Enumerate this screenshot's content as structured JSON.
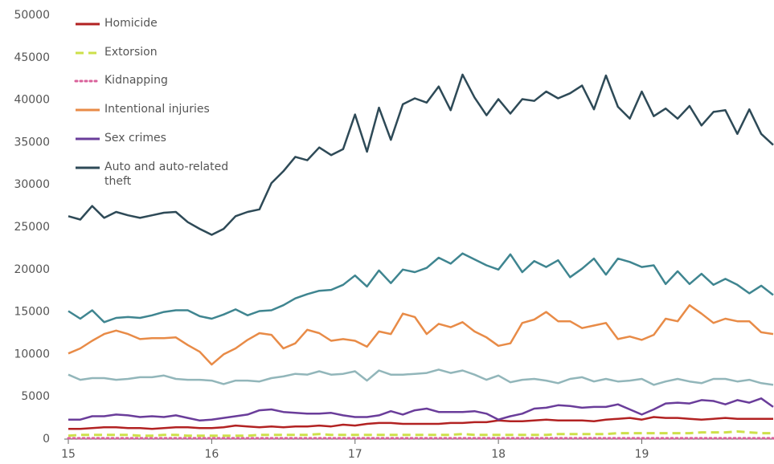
{
  "chart_data": {
    "type": "line",
    "categories": [
      "15",
      null,
      null,
      null,
      null,
      null,
      null,
      null,
      null,
      null,
      null,
      null,
      "16",
      null,
      null,
      null,
      null,
      null,
      null,
      null,
      null,
      null,
      null,
      null,
      "17",
      null,
      null,
      null,
      null,
      null,
      null,
      null,
      null,
      null,
      null,
      null,
      "18",
      null,
      null,
      null,
      null,
      null,
      null,
      null,
      null,
      null,
      null,
      null,
      "19",
      null,
      null,
      null,
      null,
      null,
      null,
      null,
      null,
      null,
      null,
      null
    ],
    "ylim": [
      0,
      50000
    ],
    "yticks": [
      0,
      5000,
      10000,
      15000,
      20000,
      25000,
      30000,
      35000,
      40000,
      45000,
      50000
    ],
    "series": [
      {
        "color": "#3f8590",
        "values": [
          15100,
          14200,
          15200,
          13800,
          14300,
          14400,
          14300,
          14600,
          15000,
          15200,
          15200,
          14500,
          14200,
          14700,
          15300,
          14600,
          15100,
          15200,
          15800,
          16600,
          17100,
          17500,
          17600,
          18200,
          19300,
          18000,
          19900,
          18400,
          20000,
          19700,
          20200,
          21400,
          20700,
          21900,
          21200,
          20500,
          20000,
          21800,
          19700,
          21000,
          20300,
          21100,
          19100,
          20100,
          21300,
          19400,
          21300,
          20900,
          20300,
          20500,
          18300,
          19800,
          18300,
          19500,
          18200,
          18900,
          18200,
          17200,
          18100,
          17000
        ]
      },
      {
        "color": "#92b6ba",
        "values": [
          7600,
          7000,
          7200,
          7200,
          7000,
          7100,
          7300,
          7300,
          7500,
          7100,
          7000,
          7000,
          6900,
          6500,
          6900,
          6900,
          6800,
          7200,
          7400,
          7700,
          7600,
          8000,
          7600,
          7700,
          8000,
          6900,
          8100,
          7600,
          7600,
          7700,
          7800,
          8200,
          7800,
          8100,
          7600,
          7000,
          7500,
          6700,
          7000,
          7100,
          6900,
          6600,
          7100,
          7300,
          6800,
          7100,
          6800,
          6900,
          7100,
          6400,
          6800,
          7100,
          6800,
          6600,
          7100,
          7100,
          6800,
          7000,
          6600,
          6400
        ]
      },
      {
        "name": "Homicide",
        "color": "#b22222",
        "values": [
          1200,
          1200,
          1300,
          1400,
          1400,
          1300,
          1300,
          1200,
          1300,
          1400,
          1400,
          1300,
          1300,
          1400,
          1600,
          1500,
          1400,
          1500,
          1400,
          1500,
          1500,
          1600,
          1500,
          1700,
          1600,
          1800,
          1900,
          1900,
          1800,
          1800,
          1800,
          1800,
          1900,
          1900,
          2000,
          2000,
          2200,
          2100,
          2100,
          2200,
          2300,
          2200,
          2200,
          2200,
          2100,
          2300,
          2400,
          2500,
          2300,
          2600,
          2500,
          2500,
          2400,
          2300,
          2400,
          2500,
          2400,
          2400,
          2400,
          2400
        ]
      },
      {
        "name": "Extorsion",
        "color": "#cde04a",
        "dash": "dashed",
        "values": [
          400,
          500,
          500,
          500,
          500,
          500,
          400,
          400,
          500,
          500,
          400,
          400,
          400,
          400,
          400,
          400,
          500,
          500,
          500,
          500,
          500,
          600,
          500,
          500,
          500,
          500,
          500,
          500,
          500,
          500,
          500,
          500,
          500,
          600,
          500,
          500,
          500,
          500,
          500,
          500,
          500,
          600,
          600,
          600,
          600,
          600,
          700,
          700,
          700,
          700,
          700,
          700,
          700,
          800,
          800,
          800,
          900,
          800,
          700,
          700
        ]
      },
      {
        "name": "Kidnapping",
        "color": "#d9609a",
        "dash": "dotted",
        "values": [
          100,
          100,
          100,
          100,
          100,
          100,
          100,
          100,
          100,
          100,
          100,
          100,
          100,
          100,
          100,
          100,
          100,
          100,
          100,
          100,
          100,
          100,
          100,
          100,
          100,
          100,
          100,
          100,
          100,
          100,
          100,
          100,
          100,
          100,
          100,
          100,
          100,
          100,
          100,
          100,
          100,
          100,
          100,
          100,
          100,
          100,
          100,
          100,
          100,
          100,
          100,
          100,
          100,
          100,
          100,
          100,
          100,
          100,
          100,
          100
        ]
      },
      {
        "name": "Intentional injuries",
        "color": "#e88b47",
        "values": [
          10100,
          10700,
          11600,
          12400,
          12800,
          12400,
          11800,
          11900,
          11900,
          12000,
          11100,
          10300,
          8800,
          10000,
          10700,
          11700,
          12500,
          12300,
          10700,
          11300,
          12900,
          12500,
          11600,
          11800,
          11600,
          10900,
          12700,
          12400,
          14800,
          14400,
          12400,
          13600,
          13200,
          13800,
          12700,
          12000,
          11000,
          11300,
          13700,
          14100,
          15000,
          13900,
          13900,
          13100,
          13400,
          13700,
          11800,
          12100,
          11700,
          12300,
          14200,
          13900,
          15800,
          14800,
          13700,
          14200,
          13900,
          13900,
          12600,
          12400
        ]
      },
      {
        "name": "Sex crimes",
        "color": "#6a3d9a",
        "values": [
          2300,
          2300,
          2700,
          2700,
          2900,
          2800,
          2600,
          2700,
          2600,
          2800,
          2500,
          2200,
          2300,
          2500,
          2700,
          2900,
          3400,
          3500,
          3200,
          3100,
          3000,
          3000,
          3100,
          2800,
          2600,
          2600,
          2800,
          3300,
          2900,
          3400,
          3600,
          3200,
          3200,
          3200,
          3300,
          3000,
          2300,
          2700,
          3000,
          3600,
          3700,
          4000,
          3900,
          3700,
          3800,
          3800,
          4100,
          3500,
          2900,
          3500,
          4200,
          4300,
          4200,
          4600,
          4500,
          4100,
          4600,
          4300,
          4800,
          3800
        ]
      },
      {
        "name": "Auto and auto-related theft",
        "color": "#2e4a57",
        "values": [
          26300,
          25900,
          27500,
          26100,
          26800,
          26400,
          26100,
          26400,
          26700,
          26800,
          25600,
          24800,
          24100,
          24800,
          26300,
          26800,
          27100,
          30200,
          31600,
          33300,
          32900,
          34400,
          33500,
          34200,
          38300,
          33900,
          39100,
          35300,
          39500,
          40200,
          39700,
          41600,
          38800,
          43000,
          40300,
          38200,
          40100,
          38400,
          40100,
          39900,
          41000,
          40200,
          40800,
          41700,
          38900,
          42900,
          39200,
          37800,
          41000,
          38100,
          39000,
          37800,
          39300,
          37000,
          38600,
          38800,
          36000,
          38900,
          36000,
          34700
        ]
      }
    ]
  }
}
